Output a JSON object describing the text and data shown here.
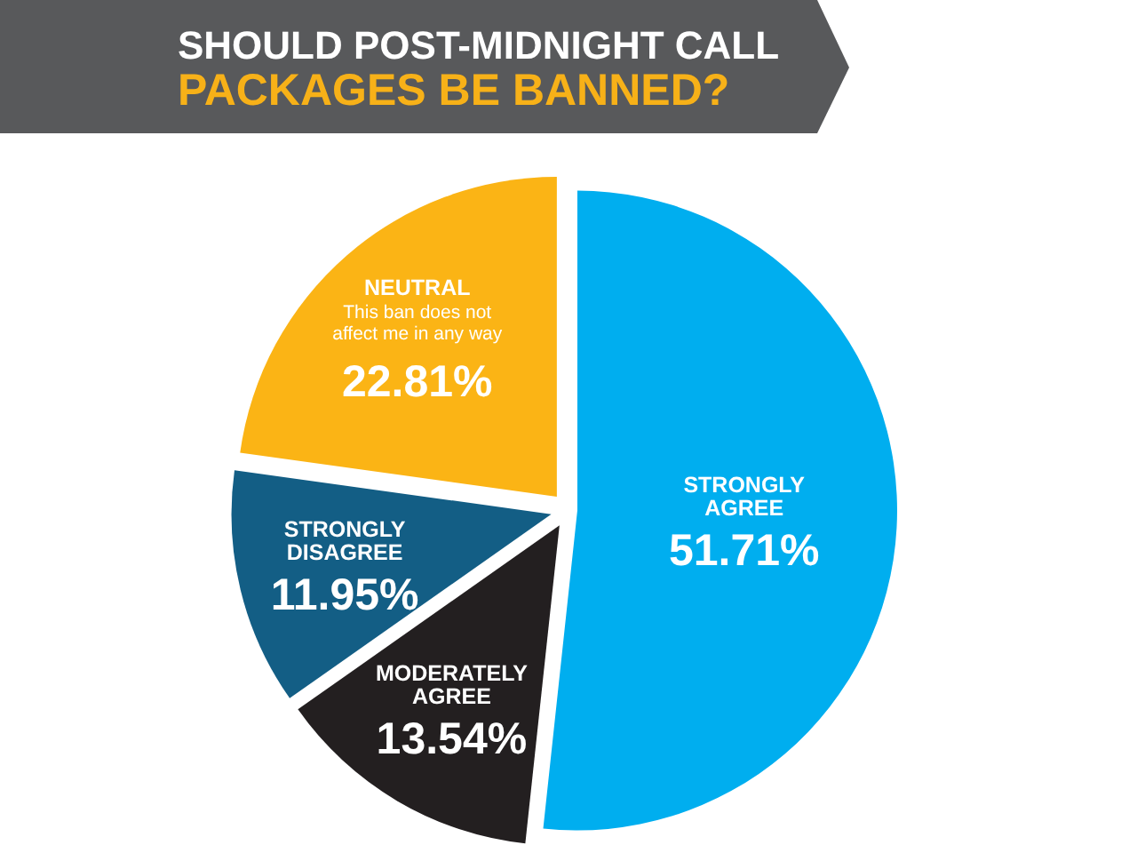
{
  "chart_data": {
    "type": "pie",
    "title": "SHOULD POST-MIDNIGHT CALL\nPACKAGES BE BANNED?",
    "categories": [
      "STRONGLY AGREE",
      "MODERATELY AGREE",
      "STRONGLY DISAGREE",
      "NEUTRAL"
    ],
    "values": [
      51.71,
      13.54,
      11.95,
      22.81
    ],
    "colors": [
      "#00aeef",
      "#231f20",
      "#135e85",
      "#fbb415"
    ],
    "value_labels": [
      "51.71%",
      "13.54%",
      "11.95%",
      "22.81%"
    ],
    "annotations": [
      {
        "text": "This ban does not affect me in any way",
        "x": "NEUTRAL"
      }
    ]
  }
}
